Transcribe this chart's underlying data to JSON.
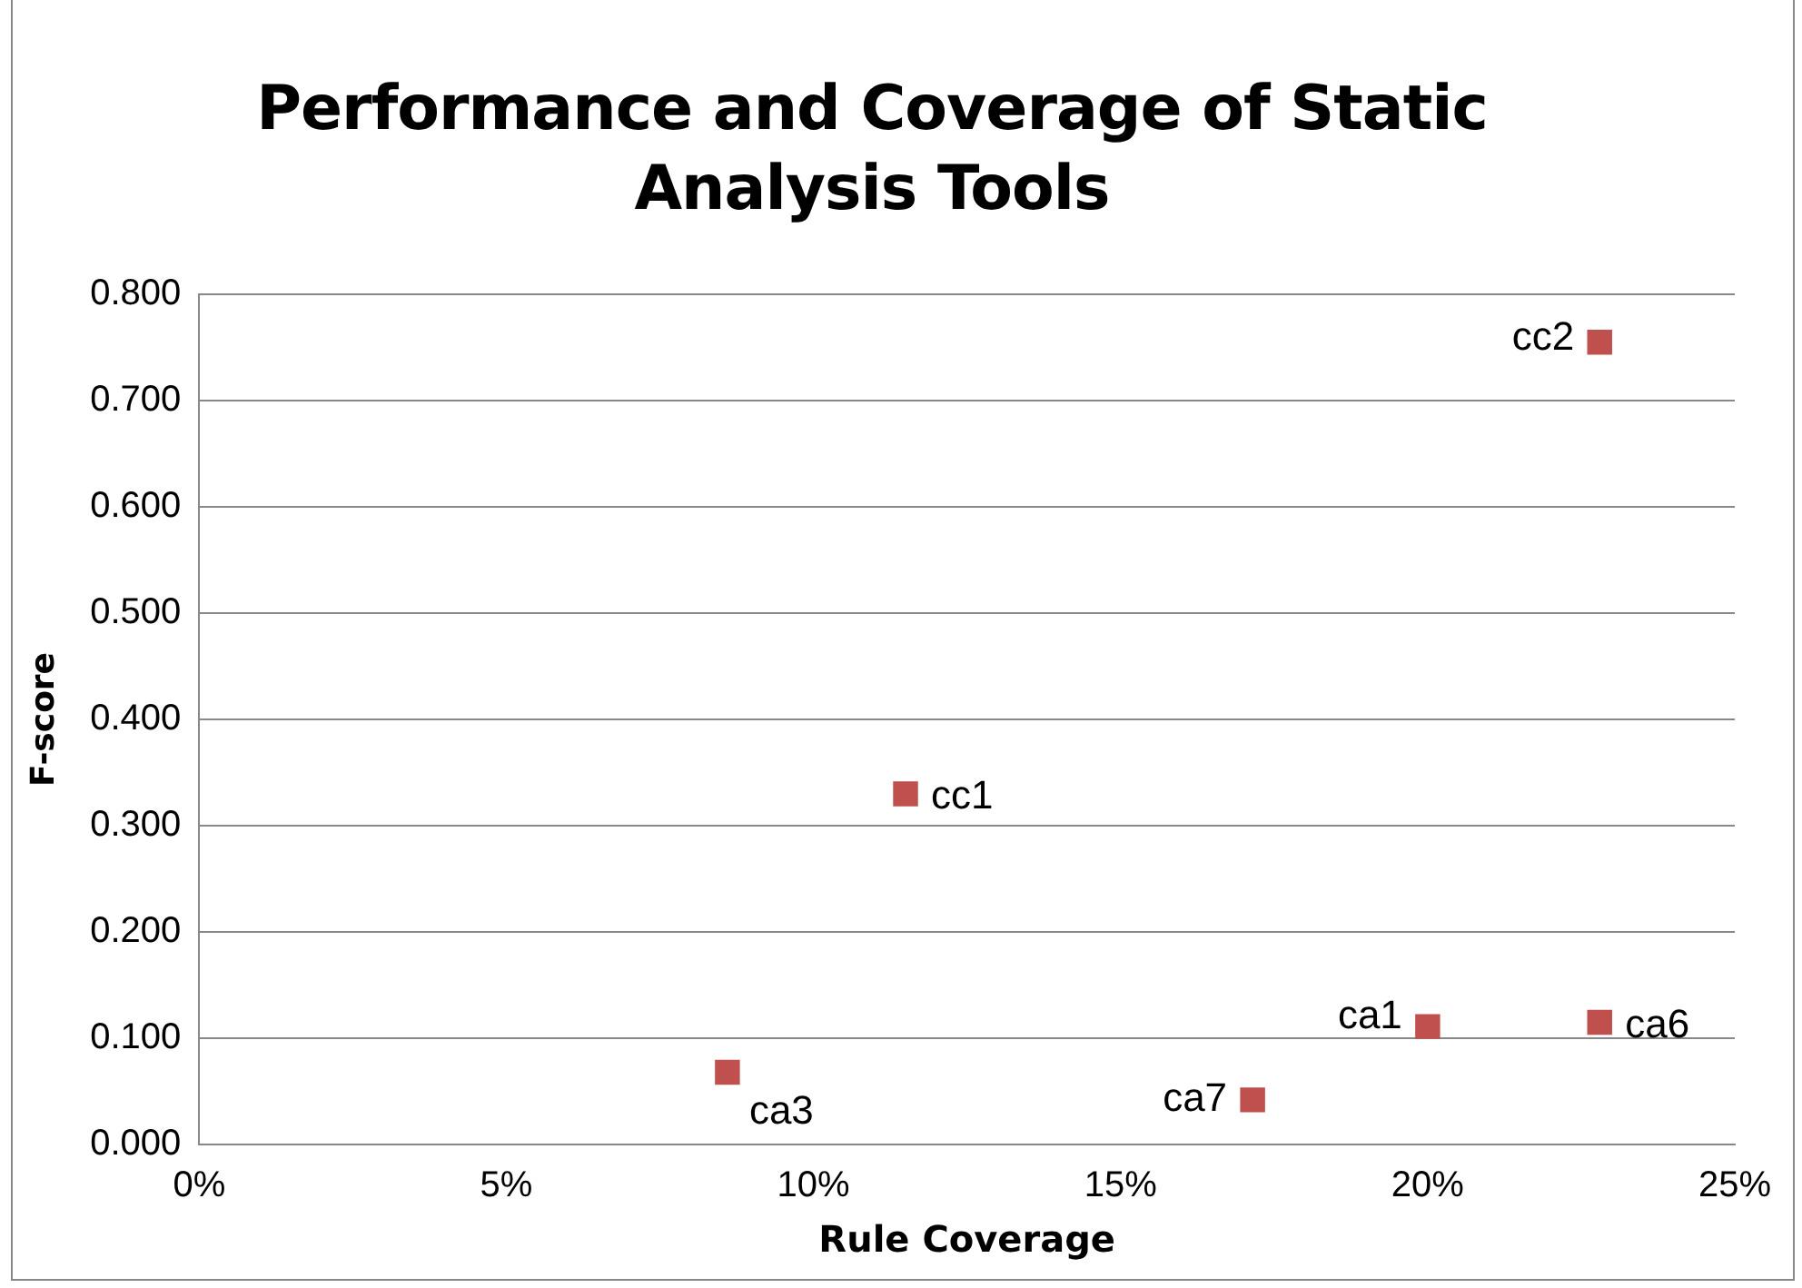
{
  "chart_data": {
    "type": "scatter",
    "title": "Performance and Coverage of Static Analysis Tools",
    "xlabel": "Rule Coverage",
    "ylabel": "F-score",
    "x": [
      22.8,
      11.5,
      8.6,
      17.15,
      20.0,
      22.8
    ],
    "series": [
      {
        "color": "#c0504d",
        "values": [
          0.755,
          0.33,
          0.068,
          0.042,
          0.111,
          0.115
        ]
      }
    ],
    "annotations": [
      {
        "text": "cc2",
        "x": 22.8,
        "y": 0.755
      },
      {
        "text": "cc1",
        "x": 11.5,
        "y": 0.33
      },
      {
        "text": "ca3",
        "x": 8.6,
        "y": 0.068
      },
      {
        "text": "ca7",
        "x": 17.15,
        "y": 0.042
      },
      {
        "text": "ca1",
        "x": 20.0,
        "y": 0.111
      },
      {
        "text": "ca6",
        "x": 22.8,
        "y": 0.115
      }
    ],
    "xlim": [
      0,
      25
    ],
    "xticks": [
      {
        "value": 0,
        "label": "0%"
      },
      {
        "value": 5,
        "label": "5%"
      },
      {
        "value": 10,
        "label": "10%"
      },
      {
        "value": 15,
        "label": "15%"
      },
      {
        "value": 20,
        "label": "20%"
      },
      {
        "value": 25,
        "label": "25%"
      }
    ],
    "ylim": [
      0,
      0.8
    ],
    "yticks": [
      {
        "value": 0,
        "label": "0.000"
      },
      {
        "value": 0.1,
        "label": "0.100"
      },
      {
        "value": 0.2,
        "label": "0.200"
      },
      {
        "value": 0.3,
        "label": "0.300"
      },
      {
        "value": 0.4,
        "label": "0.400"
      },
      {
        "value": 0.5,
        "label": "0.500"
      },
      {
        "value": 0.6,
        "label": "0.600"
      },
      {
        "value": 0.7,
        "label": "0.700"
      },
      {
        "value": 0.8,
        "label": "0.800"
      }
    ],
    "grid": "y",
    "legend": false,
    "marker": "square"
  }
}
